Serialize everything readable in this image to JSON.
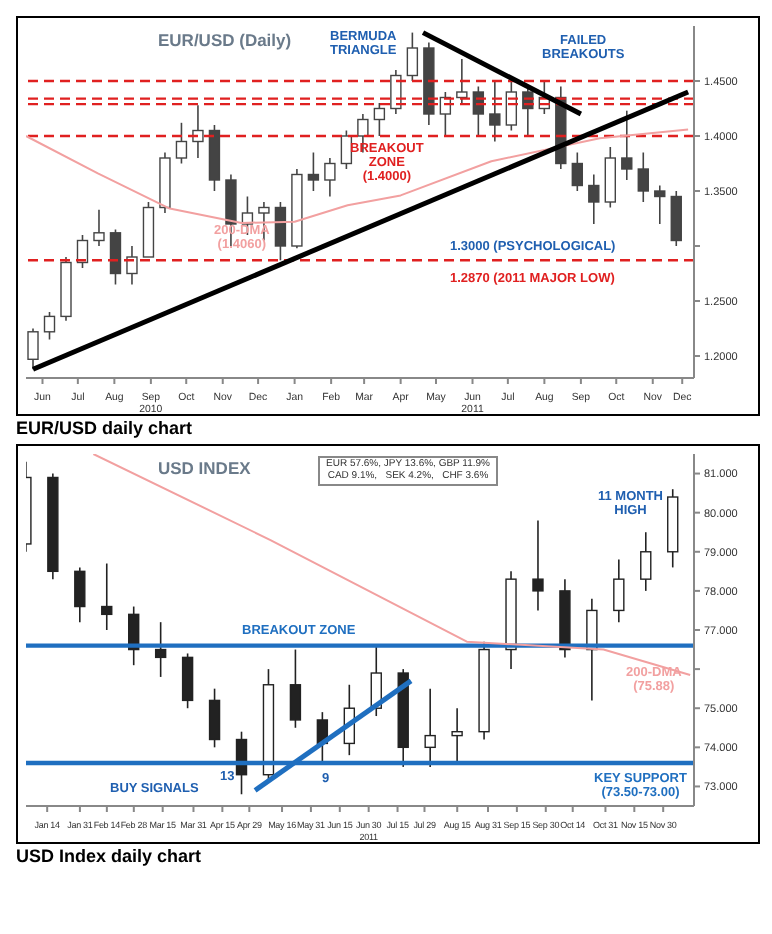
{
  "chart_data": [
    {
      "type": "candlestick",
      "title": "EUR/USD (Daily)",
      "subtitle": "EUR/USD daily chart",
      "color": "#444444",
      "x": [
        "2010-06-07",
        "2010-06-21",
        "2010-07-05",
        "2010-07-19",
        "2010-08-02",
        "2010-08-16",
        "2010-08-30",
        "2010-09-13",
        "2010-09-27",
        "2010-10-11",
        "2010-10-25",
        "2010-11-08",
        "2010-11-22",
        "2010-12-06",
        "2010-12-20",
        "2011-01-03",
        "2011-01-17",
        "2011-01-31",
        "2011-02-14",
        "2011-02-28",
        "2011-03-14",
        "2011-03-28",
        "2011-04-11",
        "2011-04-25",
        "2011-05-09",
        "2011-05-23",
        "2011-06-06",
        "2011-06-20",
        "2011-07-04",
        "2011-07-18",
        "2011-08-01",
        "2011-08-15",
        "2011-08-29",
        "2011-09-12",
        "2011-09-26",
        "2011-10-10",
        "2011-10-24",
        "2011-11-07",
        "2011-11-21",
        "2011-12-05"
      ],
      "ohlc": [
        [
          1.197,
          1.225,
          1.188,
          1.222
        ],
        [
          1.222,
          1.24,
          1.215,
          1.236
        ],
        [
          1.236,
          1.29,
          1.232,
          1.285
        ],
        [
          1.285,
          1.31,
          1.28,
          1.305
        ],
        [
          1.305,
          1.333,
          1.3,
          1.312
        ],
        [
          1.312,
          1.315,
          1.265,
          1.275
        ],
        [
          1.275,
          1.3,
          1.265,
          1.29
        ],
        [
          1.29,
          1.34,
          1.29,
          1.335
        ],
        [
          1.335,
          1.385,
          1.33,
          1.38
        ],
        [
          1.38,
          1.412,
          1.375,
          1.395
        ],
        [
          1.395,
          1.428,
          1.38,
          1.405
        ],
        [
          1.405,
          1.41,
          1.35,
          1.36
        ],
        [
          1.36,
          1.365,
          1.3,
          1.32
        ],
        [
          1.32,
          1.345,
          1.31,
          1.33
        ],
        [
          1.33,
          1.34,
          1.305,
          1.335
        ],
        [
          1.335,
          1.34,
          1.287,
          1.3
        ],
        [
          1.3,
          1.37,
          1.298,
          1.365
        ],
        [
          1.365,
          1.385,
          1.35,
          1.36
        ],
        [
          1.36,
          1.38,
          1.345,
          1.375
        ],
        [
          1.375,
          1.405,
          1.37,
          1.4
        ],
        [
          1.4,
          1.42,
          1.385,
          1.415
        ],
        [
          1.415,
          1.43,
          1.4,
          1.425
        ],
        [
          1.425,
          1.46,
          1.42,
          1.455
        ],
        [
          1.455,
          1.494,
          1.45,
          1.48
        ],
        [
          1.48,
          1.485,
          1.41,
          1.42
        ],
        [
          1.42,
          1.44,
          1.4,
          1.435
        ],
        [
          1.435,
          1.47,
          1.43,
          1.44
        ],
        [
          1.44,
          1.445,
          1.4,
          1.42
        ],
        [
          1.42,
          1.45,
          1.395,
          1.41
        ],
        [
          1.41,
          1.45,
          1.405,
          1.44
        ],
        [
          1.44,
          1.445,
          1.4,
          1.425
        ],
        [
          1.425,
          1.45,
          1.42,
          1.435
        ],
        [
          1.435,
          1.445,
          1.37,
          1.375
        ],
        [
          1.375,
          1.385,
          1.35,
          1.355
        ],
        [
          1.355,
          1.365,
          1.32,
          1.34
        ],
        [
          1.34,
          1.39,
          1.335,
          1.38
        ],
        [
          1.38,
          1.423,
          1.36,
          1.37
        ],
        [
          1.37,
          1.385,
          1.34,
          1.35
        ],
        [
          1.35,
          1.355,
          1.32,
          1.345
        ],
        [
          1.345,
          1.35,
          1.3,
          1.305
        ]
      ],
      "series": [
        {
          "type": "line",
          "name": "200-DMA\n(1.4060)",
          "color": "#f2a0a0",
          "x": [
            "2010-06-01",
            "2010-08-01",
            "2010-10-01",
            "2010-12-01",
            "2011-01-15",
            "2011-03-01",
            "2011-04-15",
            "2011-07-01",
            "2011-10-01",
            "2011-12-15"
          ],
          "values": [
            1.4,
            1.366,
            1.334,
            1.321,
            1.322,
            1.337,
            1.346,
            1.377,
            1.398,
            1.406
          ]
        },
        {
          "type": "line",
          "color": "#000000",
          "x": [
            "2010-06-07",
            "2011-12-15"
          ],
          "values": [
            1.188,
            1.44
          ]
        },
        {
          "type": "line",
          "color": "#000000",
          "x": [
            "2011-05-04",
            "2011-09-15"
          ],
          "values": [
            1.494,
            1.42
          ]
        }
      ],
      "ref_lines": [
        {
          "axis": "y",
          "value": 1.45,
          "color": "#e02020",
          "line_style": "dashed"
        },
        {
          "axis": "y",
          "value": 1.434,
          "color": "#e02020",
          "line_style": "dashed"
        },
        {
          "axis": "y",
          "value": 1.429,
          "color": "#e02020",
          "line_style": "dashed"
        },
        {
          "axis": "y",
          "value": 1.4,
          "color": "#e02020",
          "line_style": "dashed",
          "label": "BREAKOUT\nZONE\n(1.4000)"
        },
        {
          "axis": "y",
          "value": 1.287,
          "color": "#e02020",
          "line_style": "dashed",
          "label": "1.2870 (2011 MAJOR LOW)"
        }
      ],
      "annotations": [
        "BERMUDA\nTRIANGLE",
        "FAILED\nBREAKOUTS",
        "1.3000 (PSYCHOLOGICAL)"
      ],
      "xlim": [
        "2010-06-01",
        "2011-12-20"
      ],
      "xticks": [
        {
          "value": "2010-06-15",
          "label": "Jun"
        },
        {
          "value": "2010-07-15",
          "label": "Jul"
        },
        {
          "value": "2010-08-15",
          "label": "Aug"
        },
        {
          "value": "2010-09-15",
          "label": "Sep\n2010"
        },
        {
          "value": "2010-10-15",
          "label": "Oct"
        },
        {
          "value": "2010-11-15",
          "label": "Nov"
        },
        {
          "value": "2010-12-15",
          "label": "Dec"
        },
        {
          "value": "2011-01-15",
          "label": "Jan"
        },
        {
          "value": "2011-02-15",
          "label": "Feb"
        },
        {
          "value": "2011-03-15",
          "label": "Mar"
        },
        {
          "value": "2011-04-15",
          "label": "Apr"
        },
        {
          "value": "2011-05-15",
          "label": "May"
        },
        {
          "value": "2011-06-15",
          "label": "Jun\n2011"
        },
        {
          "value": "2011-07-15",
          "label": "Jul"
        },
        {
          "value": "2011-08-15",
          "label": "Aug"
        },
        {
          "value": "2011-09-15",
          "label": "Sep"
        },
        {
          "value": "2011-10-15",
          "label": "Oct"
        },
        {
          "value": "2011-11-15",
          "label": "Nov"
        },
        {
          "value": "2011-12-10",
          "label": "Dec"
        }
      ],
      "ylim": [
        1.18,
        1.5
      ],
      "yticks": [
        {
          "value": 1.2,
          "label": "1.2000"
        },
        {
          "value": 1.25,
          "label": "1.2500"
        },
        {
          "value": 1.3,
          "label": null
        },
        {
          "value": 1.35,
          "label": "1.3500"
        },
        {
          "value": 1.4,
          "label": "1.4000"
        },
        {
          "value": 1.45,
          "label": "1.4500"
        }
      ]
    },
    {
      "type": "candlestick",
      "title": "USD INDEX",
      "subtitle": "USD Index daily chart",
      "color": "#222222",
      "x": [
        "2011-01-03",
        "2011-01-17",
        "2011-01-31",
        "2011-02-14",
        "2011-02-28",
        "2011-03-14",
        "2011-03-28",
        "2011-04-11",
        "2011-04-25",
        "2011-05-09",
        "2011-05-23",
        "2011-06-06",
        "2011-06-20",
        "2011-07-04",
        "2011-07-18",
        "2011-08-01",
        "2011-08-15",
        "2011-08-29",
        "2011-09-12",
        "2011-09-26",
        "2011-10-10",
        "2011-10-24",
        "2011-11-07",
        "2011-11-21",
        "2011-12-05"
      ],
      "ohlc": [
        [
          79.2,
          81.3,
          79,
          80.9
        ],
        [
          80.9,
          81,
          78.3,
          78.5
        ],
        [
          78.5,
          78.6,
          77.2,
          77.6
        ],
        [
          77.6,
          78.7,
          77,
          77.4
        ],
        [
          77.4,
          77.6,
          76.1,
          76.5
        ],
        [
          76.5,
          77.2,
          75.8,
          76.3
        ],
        [
          76.3,
          76.4,
          75,
          75.2
        ],
        [
          75.2,
          75.5,
          74,
          74.2
        ],
        [
          74.2,
          74.4,
          72.8,
          73.3
        ],
        [
          73.3,
          76,
          73.1,
          75.6
        ],
        [
          75.6,
          76.5,
          74.5,
          74.7
        ],
        [
          74.7,
          74.9,
          73.6,
          74.1
        ],
        [
          74.1,
          75.6,
          73.8,
          75
        ],
        [
          75,
          76.6,
          74.8,
          75.9
        ],
        [
          75.9,
          76,
          73.5,
          74
        ],
        [
          74,
          75.5,
          73.5,
          74.3
        ],
        [
          74.3,
          75,
          73.6,
          74.4
        ],
        [
          74.4,
          76.7,
          74.2,
          76.5
        ],
        [
          76.5,
          78.5,
          76,
          78.3
        ],
        [
          78.3,
          79.8,
          77.5,
          78
        ],
        [
          78,
          78.3,
          76.3,
          76.5
        ],
        [
          76.5,
          77.8,
          75.2,
          77.5
        ],
        [
          77.5,
          78.8,
          77.2,
          78.3
        ],
        [
          78.3,
          79.5,
          78,
          79
        ],
        [
          79,
          80.6,
          78.6,
          80.4
        ]
      ],
      "series": [
        {
          "type": "line",
          "name": "200-DMA\n(75.88)",
          "color": "#f2a0a0",
          "x": [
            "2011-02-07",
            "2011-05-10",
            "2011-08-20",
            "2011-10-30",
            "2011-12-14"
          ],
          "values": [
            81.5,
            79.3,
            76.7,
            76.5,
            75.85
          ]
        },
        {
          "type": "line",
          "color": "#1f6fc0",
          "x": [
            "2011-05-02",
            "2011-07-22"
          ],
          "values": [
            72.9,
            75.7
          ]
        }
      ],
      "ref_lines": [
        {
          "axis": "y",
          "value": 76.6,
          "color": "#1f6fc0",
          "line_style": "solid",
          "label": "BREAKOUT ZONE"
        },
        {
          "axis": "y",
          "value": 73.6,
          "color": "#1f6fc0",
          "line_style": "solid",
          "label": "KEY SUPPORT\n(73.50-73.00)"
        }
      ],
      "annotations": [
        "EUR 57.6%, JPY 13.6%, GBP 11.9%\nCAD 9.1%,   SEK 4.2%,   CHF 3.6%",
        "11 MONTH\nHIGH",
        "BUY SIGNALS",
        "13",
        "9"
      ],
      "xlim": [
        "2011-01-03",
        "2011-12-16"
      ],
      "xticks": [
        {
          "value": "2011-01-14",
          "label": "Jan 14"
        },
        {
          "value": "2011-01-31",
          "label": "Jan 31"
        },
        {
          "value": "2011-02-14",
          "label": "Feb 14"
        },
        {
          "value": "2011-02-28",
          "label": "Feb 28"
        },
        {
          "value": "2011-03-15",
          "label": "Mar 15"
        },
        {
          "value": "2011-03-31",
          "label": "Mar 31"
        },
        {
          "value": "2011-04-15",
          "label": "Apr 15"
        },
        {
          "value": "2011-04-29",
          "label": "Apr 29"
        },
        {
          "value": "2011-05-16",
          "label": "May 16"
        },
        {
          "value": "2011-05-31",
          "label": "May 31"
        },
        {
          "value": "2011-06-15",
          "label": "Jun 15"
        },
        {
          "value": "2011-06-30",
          "label": "Jun 30\n2011"
        },
        {
          "value": "2011-07-15",
          "label": "Jul 15"
        },
        {
          "value": "2011-07-29",
          "label": "Jul 29"
        },
        {
          "value": "2011-08-15",
          "label": "Aug 15"
        },
        {
          "value": "2011-08-31",
          "label": "Aug 31"
        },
        {
          "value": "2011-09-15",
          "label": "Sep 15"
        },
        {
          "value": "2011-09-30",
          "label": "Sep 30"
        },
        {
          "value": "2011-10-14",
          "label": "Oct 14"
        },
        {
          "value": "2011-10-31",
          "label": "Oct 31"
        },
        {
          "value": "2011-11-15",
          "label": "Nov 15"
        },
        {
          "value": "2011-11-30",
          "label": "Nov 30"
        }
      ],
      "ylim": [
        72.5,
        81.5
      ],
      "yticks": [
        {
          "value": 73,
          "label": "73.000"
        },
        {
          "value": 74,
          "label": "74.000"
        },
        {
          "value": 75,
          "label": "75.000"
        },
        {
          "value": 76,
          "label": null
        },
        {
          "value": 77,
          "label": "77.000"
        },
        {
          "value": 78,
          "label": "78.000"
        },
        {
          "value": 79,
          "label": "79.000"
        },
        {
          "value": 80,
          "label": "80.000"
        },
        {
          "value": 81,
          "label": "81.000"
        }
      ]
    }
  ]
}
